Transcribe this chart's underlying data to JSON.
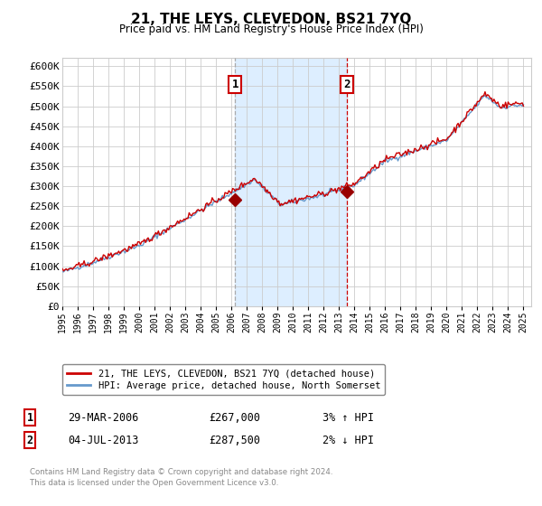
{
  "title": "21, THE LEYS, CLEVEDON, BS21 7YQ",
  "subtitle": "Price paid vs. HM Land Registry's House Price Index (HPI)",
  "legend_line1": "21, THE LEYS, CLEVEDON, BS21 7YQ (detached house)",
  "legend_line2": "HPI: Average price, detached house, North Somerset",
  "annotation1_label": "1",
  "annotation1_date": "29-MAR-2006",
  "annotation1_price": "£267,000",
  "annotation1_hpi": "3% ↑ HPI",
  "annotation2_label": "2",
  "annotation2_date": "04-JUL-2013",
  "annotation2_price": "£287,500",
  "annotation2_hpi": "2% ↓ HPI",
  "footer": "Contains HM Land Registry data © Crown copyright and database right 2024.\nThis data is licensed under the Open Government Licence v3.0.",
  "hpi_color": "#6699cc",
  "price_color": "#cc0000",
  "marker_color": "#990000",
  "vline1_color": "#aaaaaa",
  "vline2_color": "#cc0000",
  "shading_color": "#ddeeff",
  "background_color": "#ffffff",
  "grid_color": "#cccccc",
  "ylim": [
    0,
    620000
  ],
  "xlim_start": 1995,
  "xlim_end": 2025.5,
  "sale1_x": 2006.24,
  "sale1_y": 267000,
  "sale2_x": 2013.5,
  "sale2_y": 287500,
  "vline1_x": 2006.24,
  "vline2_x": 2013.5,
  "shade_start": 2006.24,
  "shade_end": 2013.5,
  "yticks": [
    0,
    50000,
    100000,
    150000,
    200000,
    250000,
    300000,
    350000,
    400000,
    450000,
    500000,
    550000,
    600000
  ],
  "ytick_labels": [
    "£0",
    "£50K",
    "£100K",
    "£150K",
    "£200K",
    "£250K",
    "£300K",
    "£350K",
    "£400K",
    "£450K",
    "£500K",
    "£550K",
    "£600K"
  ]
}
